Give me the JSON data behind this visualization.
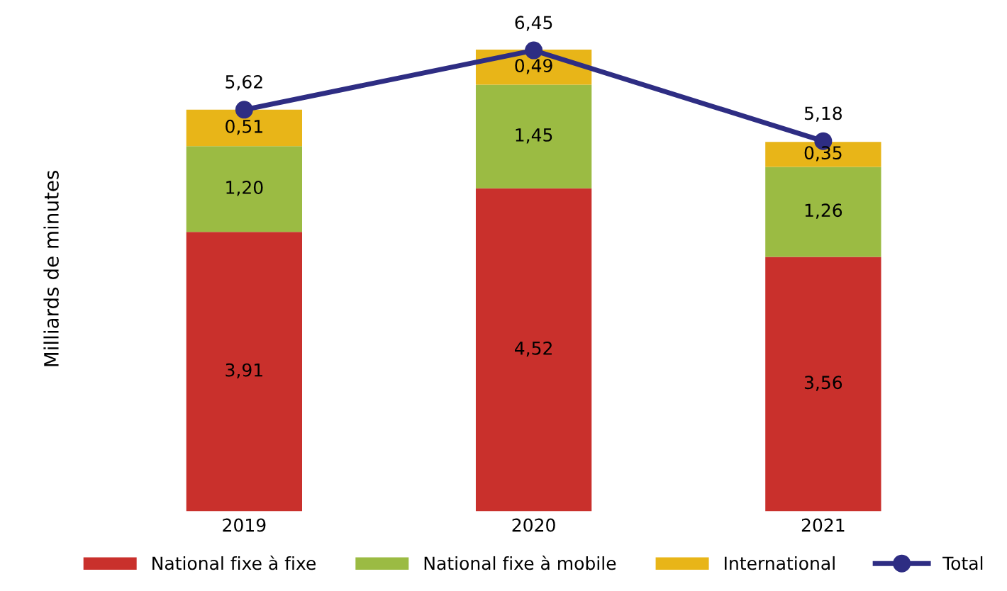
{
  "chart_data": {
    "type": "bar",
    "stacked": true,
    "ylabel": "Milliards de minutes",
    "categories": [
      "2019",
      "2020",
      "2021"
    ],
    "series": [
      {
        "name": "National fixe à fixe",
        "color": "#c9302c",
        "values": [
          3.91,
          4.52,
          3.56
        ],
        "value_labels": [
          "3,91",
          "4,52",
          "3,56"
        ]
      },
      {
        "name": "National fixe à mobile",
        "color": "#9bbb43",
        "values": [
          1.2,
          1.45,
          1.26
        ],
        "value_labels": [
          "1,20",
          "1,45",
          "1,26"
        ]
      },
      {
        "name": "International",
        "color": "#e8b518",
        "values": [
          0.51,
          0.49,
          0.35
        ],
        "value_labels": [
          "0,51",
          "0,49",
          "0,35"
        ]
      },
      {
        "name": "Total",
        "type": "line",
        "color": "#2e2d83",
        "values": [
          5.62,
          6.45,
          5.18
        ],
        "value_labels": [
          "5,62",
          "6,45",
          "5,18"
        ]
      }
    ],
    "marker": "circle",
    "grid": false,
    "legend": "bottom",
    "tick_labels": "x"
  }
}
